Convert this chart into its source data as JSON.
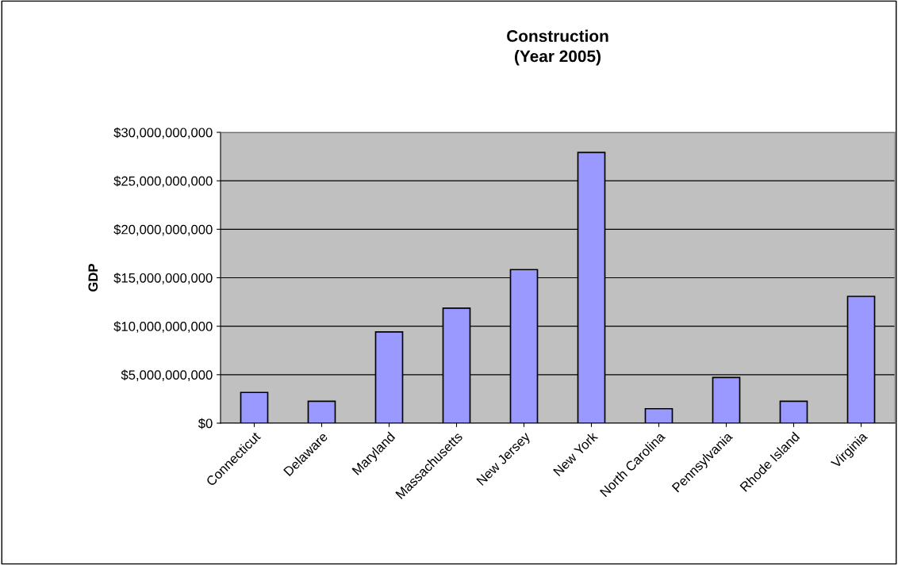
{
  "chart_data": {
    "type": "bar",
    "title": "Construction\n(Year 2005)",
    "ylabel": "GDP",
    "categories": [
      "Connecticut",
      "Delaware",
      "Maryland",
      "Massachusetts",
      "New Jersey",
      "New York",
      "North Carolina",
      "Pennsylvania",
      "Rhode Island",
      "Virginia"
    ],
    "values": [
      3170000000,
      2260000000,
      9410000000,
      11860000000,
      15840000000,
      27920000000,
      1490000000,
      4710000000,
      2260000000,
      13080000000
    ],
    "color": "#9999ff",
    "ylim": [
      0,
      30000000000
    ],
    "yticks": [
      {
        "value": 0,
        "label": "$0"
      },
      {
        "value": 5000000000,
        "label": "$5,000,000,000"
      },
      {
        "value": 10000000000,
        "label": "$10,000,000,000"
      },
      {
        "value": 15000000000,
        "label": "$15,000,000,000"
      },
      {
        "value": 20000000000,
        "label": "$20,000,000,000"
      },
      {
        "value": 25000000000,
        "label": "$25,000,000,000"
      },
      {
        "value": 30000000000,
        "label": "$30,000,000,000"
      }
    ],
    "grid": "y",
    "legend": false
  }
}
